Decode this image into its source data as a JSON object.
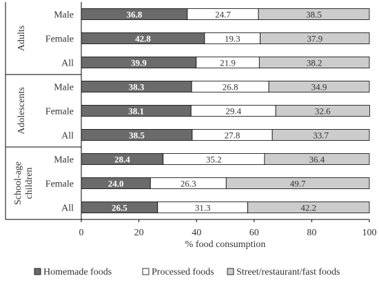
{
  "chart_data": {
    "type": "bar",
    "stacked": true,
    "orientation": "horizontal",
    "xlabel": "% food consumption",
    "xlim": [
      0,
      100
    ],
    "xticks": [
      "0",
      "20",
      "40",
      "60",
      "80",
      "100"
    ],
    "groups": [
      {
        "name": "Adults",
        "categories": [
          "Male",
          "Female",
          "All"
        ]
      },
      {
        "name": "Adolescents",
        "categories": [
          "Male",
          "Female",
          "All"
        ]
      },
      {
        "name": "School-age children",
        "categories": [
          "Male",
          "Female",
          "All"
        ]
      }
    ],
    "series": [
      {
        "name": "Homemade foods",
        "color": "#6b6b6b",
        "label_color": "#ffffff",
        "label_bold": true,
        "values": [
          36.8,
          42.8,
          39.9,
          38.3,
          38.1,
          38.5,
          28.4,
          24.0,
          26.5
        ],
        "labels": [
          "36.8",
          "42.8",
          "39.9",
          "38.3",
          "38.1",
          "38.5",
          "28.4",
          "24.0",
          "26.5"
        ]
      },
      {
        "name": "Processed foods",
        "color": "#ffffff",
        "label_color": "#333333",
        "label_bold": false,
        "values": [
          24.7,
          19.3,
          21.9,
          26.8,
          29.4,
          27.8,
          35.2,
          26.3,
          31.3
        ],
        "labels": [
          "24.7",
          "19.3",
          "21.9",
          "26.8",
          "29.4",
          "27.8",
          "35.2",
          "26.3",
          "31.3"
        ]
      },
      {
        "name": "Street/restaurant/fast foods",
        "color": "#cccccc",
        "label_color": "#333333",
        "label_bold": false,
        "values": [
          38.5,
          37.9,
          38.2,
          34.9,
          32.6,
          33.7,
          36.4,
          49.7,
          42.2
        ],
        "labels": [
          "38.5",
          "37.9",
          "38.2",
          "34.9",
          "32.6",
          "33.7",
          "36.4",
          "49.7",
          "42.2"
        ]
      }
    ],
    "legend_position": "bottom",
    "grid": false
  }
}
